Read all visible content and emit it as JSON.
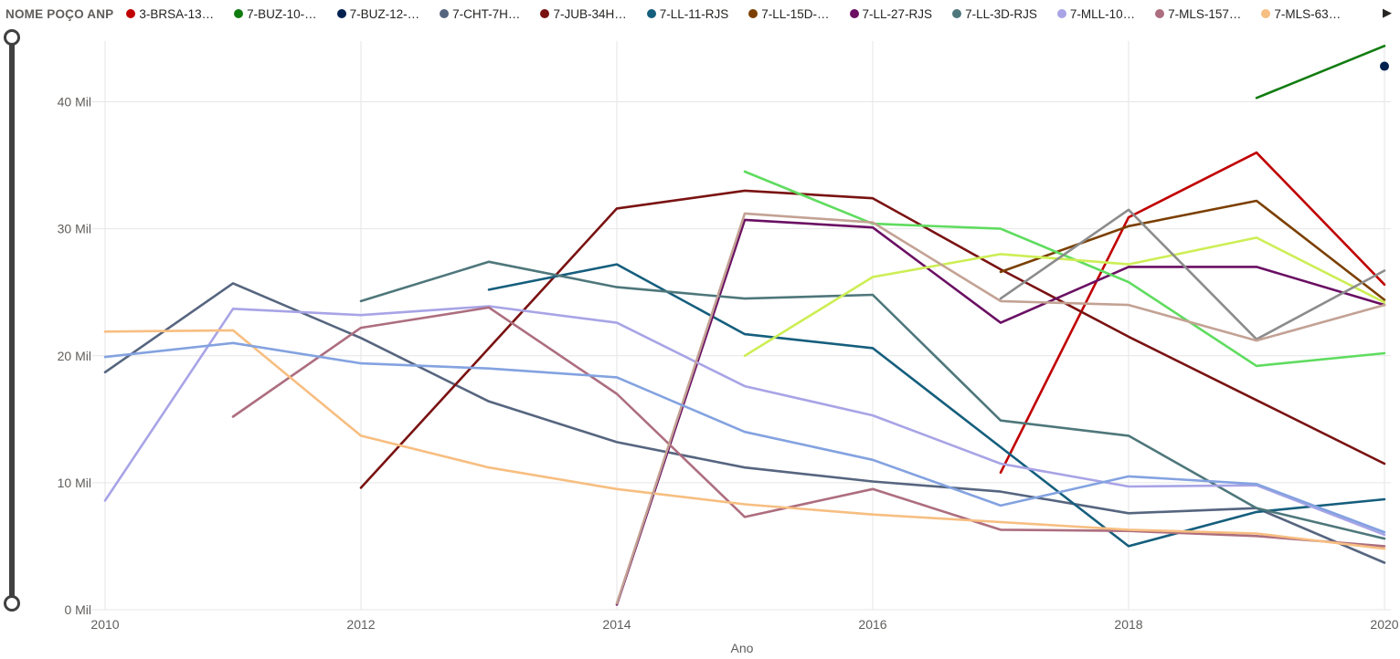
{
  "legend": {
    "title": "NOME POÇO ANP",
    "scroll_arrow": "▶",
    "items": [
      {
        "label": "3-BRSA-13…",
        "color": "#C00000"
      },
      {
        "label": "7-BUZ-10-…",
        "color": "#107C10"
      },
      {
        "label": "7-BUZ-12-…",
        "color": "#002050"
      },
      {
        "label": "7-CHT-7H…",
        "color": "#56657F"
      },
      {
        "label": "7-JUB-34H…",
        "color": "#7A1212"
      },
      {
        "label": "7-LL-11-RJS",
        "color": "#155E7D"
      },
      {
        "label": "7-LL-15D-…",
        "color": "#7B3F00"
      },
      {
        "label": "7-LL-27-RJS",
        "color": "#6A0F63"
      },
      {
        "label": "7-LL-3D-RJS",
        "color": "#4E777B"
      },
      {
        "label": "7-MLL-10…",
        "color": "#A8A4E6"
      },
      {
        "label": "7-MLS-157…",
        "color": "#AD6E7F"
      },
      {
        "label": "7-MLS-63…",
        "color": "#F7BE81"
      }
    ]
  },
  "chart_data": {
    "type": "line",
    "title": "",
    "xlabel": "Ano",
    "ylabel": "",
    "y_unit": "Mil",
    "xlim": [
      2010,
      2020
    ],
    "ylim": [
      0,
      44.8
    ],
    "x_ticks": [
      2010,
      2012,
      2014,
      2016,
      2018,
      2020
    ],
    "y_ticks": [
      0,
      10,
      20,
      30,
      40
    ],
    "y_tick_labels": [
      "0 Mil",
      "10 Mil",
      "20 Mil",
      "30 Mil",
      "40 Mil"
    ],
    "grid": true,
    "grid_color": "#E6E6E6",
    "axis_label_color": "#605E5C",
    "legend_position": "top",
    "series": [
      {
        "name": "3-BRSA-13…",
        "color": "#C00000",
        "points": [
          [
            2017,
            10.8
          ],
          [
            2018,
            30.9
          ],
          [
            2019,
            36.0
          ],
          [
            2020,
            25.6
          ]
        ]
      },
      {
        "name": "7-BUZ-10-…",
        "color": "#107C10",
        "points": [
          [
            2019,
            40.3
          ],
          [
            2020,
            44.4
          ]
        ]
      },
      {
        "name": "7-BUZ-12-…",
        "color": "#002050",
        "points": [
          [
            2020,
            42.8
          ]
        ]
      },
      {
        "name": "7-CHT-7H…",
        "color": "#56657F",
        "points": [
          [
            2010,
            18.7
          ],
          [
            2011,
            25.7
          ],
          [
            2012,
            21.4
          ],
          [
            2013,
            16.4
          ],
          [
            2014,
            13.2
          ],
          [
            2015,
            11.2
          ],
          [
            2016,
            10.1
          ],
          [
            2017,
            9.3
          ],
          [
            2018,
            7.6
          ],
          [
            2019,
            8.0
          ],
          [
            2020,
            3.7
          ]
        ]
      },
      {
        "name": "7-JUB-34H…",
        "color": "#7A1212",
        "points": [
          [
            2012,
            9.6
          ],
          [
            2013,
            20.6
          ],
          [
            2014,
            31.6
          ],
          [
            2015,
            33.0
          ],
          [
            2016,
            32.4
          ],
          [
            2017,
            26.8
          ],
          [
            2018,
            21.5
          ],
          [
            2019,
            16.5
          ],
          [
            2020,
            11.5
          ]
        ]
      },
      {
        "name": "7-LL-11-RJS",
        "color": "#155E7D",
        "points": [
          [
            2013,
            25.2
          ],
          [
            2014,
            27.2
          ],
          [
            2015,
            21.7
          ],
          [
            2016,
            20.6
          ],
          [
            2017,
            12.8
          ],
          [
            2018,
            5.0
          ],
          [
            2019,
            7.7
          ],
          [
            2020,
            8.7
          ]
        ]
      },
      {
        "name": "7-LL-15D-…",
        "color": "#7B3F00",
        "points": [
          [
            2017,
            26.6
          ],
          [
            2018,
            30.2
          ],
          [
            2019,
            32.2
          ],
          [
            2020,
            24.4
          ]
        ]
      },
      {
        "name": "7-LL-27-RJS",
        "color": "#6A0F63",
        "points": [
          [
            2014,
            0.4
          ],
          [
            2015,
            30.7
          ],
          [
            2016,
            30.1
          ],
          [
            2017,
            22.6
          ],
          [
            2018,
            27.0
          ],
          [
            2019,
            27.0
          ],
          [
            2020,
            24.0
          ]
        ]
      },
      {
        "name": "7-LL-3D-RJS",
        "color": "#4E777B",
        "points": [
          [
            2012,
            24.3
          ],
          [
            2013,
            27.4
          ],
          [
            2014,
            25.4
          ],
          [
            2015,
            24.5
          ],
          [
            2016,
            24.8
          ],
          [
            2017,
            14.9
          ],
          [
            2018,
            13.7
          ],
          [
            2019,
            8.0
          ],
          [
            2020,
            5.6
          ]
        ]
      },
      {
        "name": "7-MLL-10…",
        "color": "#A8A4E6",
        "points": [
          [
            2010,
            8.6
          ],
          [
            2011,
            23.7
          ],
          [
            2012,
            23.2
          ],
          [
            2013,
            23.9
          ],
          [
            2014,
            22.6
          ],
          [
            2015,
            17.6
          ],
          [
            2016,
            15.3
          ],
          [
            2017,
            11.5
          ],
          [
            2018,
            9.7
          ],
          [
            2019,
            9.8
          ],
          [
            2020,
            5.9
          ]
        ]
      },
      {
        "name": "7-MLS-157…",
        "color": "#AD6E7F",
        "points": [
          [
            2011,
            15.2
          ],
          [
            2012,
            22.2
          ],
          [
            2013,
            23.8
          ],
          [
            2014,
            17.0
          ],
          [
            2015,
            7.3
          ],
          [
            2016,
            9.5
          ],
          [
            2017,
            6.3
          ],
          [
            2018,
            6.2
          ],
          [
            2019,
            5.8
          ],
          [
            2020,
            5.0
          ]
        ]
      },
      {
        "name": "7-MLS-63…",
        "color": "#F7BE81",
        "points": [
          [
            2010,
            21.9
          ],
          [
            2011,
            22.0
          ],
          [
            2012,
            13.7
          ],
          [
            2013,
            11.2
          ],
          [
            2014,
            9.5
          ],
          [
            2015,
            8.3
          ],
          [
            2016,
            7.5
          ],
          [
            2017,
            6.9
          ],
          [
            2018,
            6.3
          ],
          [
            2019,
            6.0
          ],
          [
            2020,
            4.8
          ]
        ]
      },
      {
        "name": "",
        "color": "#5FDC5F",
        "points": [
          [
            2015,
            34.5
          ],
          [
            2016,
            30.4
          ],
          [
            2017,
            30.0
          ],
          [
            2018,
            25.8
          ],
          [
            2019,
            19.2
          ],
          [
            2020,
            20.2
          ]
        ]
      },
      {
        "name": "",
        "color": "#CDEE55",
        "points": [
          [
            2015,
            20.0
          ],
          [
            2016,
            26.2
          ],
          [
            2017,
            28.0
          ],
          [
            2018,
            27.2
          ],
          [
            2019,
            29.3
          ],
          [
            2020,
            24.2
          ]
        ]
      },
      {
        "name": "",
        "color": "#8C8C8C",
        "points": [
          [
            2017,
            24.5
          ],
          [
            2018,
            31.5
          ],
          [
            2019,
            21.3
          ],
          [
            2020,
            26.7
          ]
        ]
      },
      {
        "name": "",
        "color": "#C3A294",
        "points": [
          [
            2014,
            0.5
          ],
          [
            2015,
            31.2
          ],
          [
            2016,
            30.5
          ],
          [
            2017,
            24.3
          ],
          [
            2018,
            24.0
          ],
          [
            2019,
            21.2
          ],
          [
            2020,
            24.0
          ]
        ]
      },
      {
        "name": "",
        "color": "#83A2E0",
        "points": [
          [
            2010,
            19.9
          ],
          [
            2011,
            21.0
          ],
          [
            2012,
            19.4
          ],
          [
            2013,
            19.0
          ],
          [
            2014,
            18.3
          ],
          [
            2015,
            14.0
          ],
          [
            2016,
            11.8
          ],
          [
            2017,
            8.2
          ],
          [
            2018,
            10.5
          ],
          [
            2019,
            9.9
          ],
          [
            2020,
            6.1
          ]
        ]
      }
    ]
  }
}
